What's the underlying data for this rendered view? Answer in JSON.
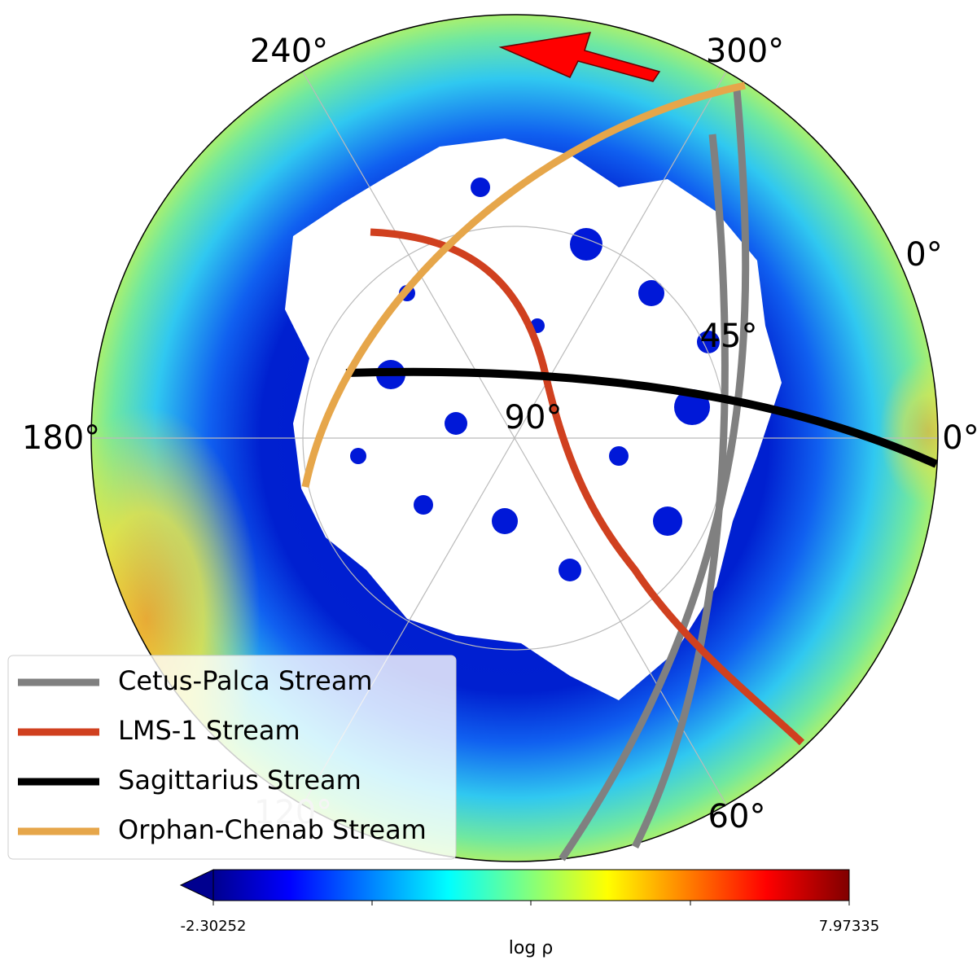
{
  "angle_labels": [
    "240°",
    "300°",
    "0°",
    "180°",
    "0°",
    "90°",
    "45°",
    "120°",
    "60°"
  ],
  "legend": [
    {
      "name": "Cetus-Palca Stream",
      "color": "#808080"
    },
    {
      "name": "LMS-1 Stream",
      "color": "#d0401f"
    },
    {
      "name": "Sagittarius Stream",
      "color": "#000000"
    },
    {
      "name": "Orphan-Chenab Stream",
      "color": "#e6a64a"
    }
  ],
  "colorbar": {
    "min_label": "-2.30252",
    "max_label": "7.97335",
    "label": "log ρ"
  }
}
